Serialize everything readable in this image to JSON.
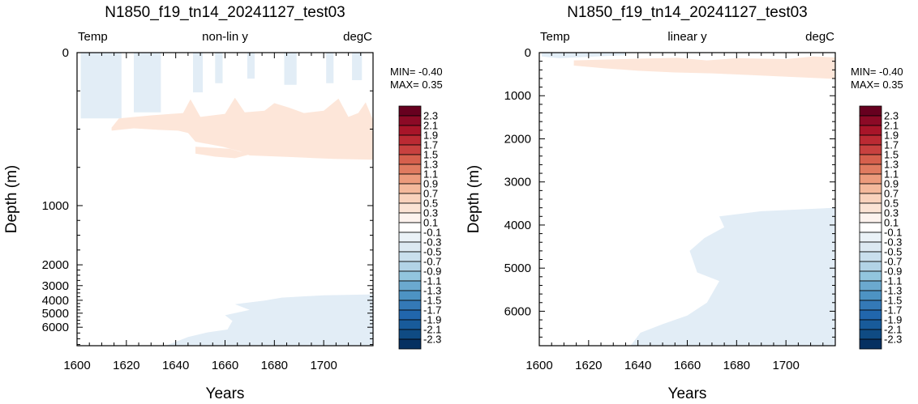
{
  "chart_data": [
    {
      "type": "heatmap",
      "title": "N1850_f19_tn14_20241127_test03",
      "left_label": "Temp",
      "center_label": "non-lin y",
      "right_label": "degC",
      "xlabel": "Years",
      "ylabel": "Depth (m)",
      "xlim": [
        1600,
        1720
      ],
      "ylim": [
        6800,
        0
      ],
      "y_scale": "nonlinear (upper 1000 m stretched)",
      "xticks": [
        "1600",
        "1620",
        "1640",
        "1660",
        "1680",
        "1700"
      ],
      "yticks": [
        "0",
        "1000",
        "2000",
        "3000",
        "4000",
        "5000",
        "6000"
      ],
      "min_text": "MIN= -0.40",
      "max_text": "MAX=  0.35",
      "regions": [
        {
          "sign": "negative",
          "level": -0.1,
          "depth_range": [
            0,
            430
          ],
          "years": [
            1600,
            1716
          ],
          "note": "near-surface cooling in vertical streaks"
        },
        {
          "sign": "positive",
          "level": 0.1,
          "depth_range": [
            430,
            700
          ],
          "years": [
            1613,
            1720
          ],
          "note": "warming band in upper ocean"
        },
        {
          "sign": "negative",
          "level": -0.1,
          "depth_range": [
            3600,
            6800
          ],
          "years": [
            1640,
            1720
          ],
          "note": "deep cooling"
        }
      ]
    },
    {
      "type": "heatmap",
      "title": "N1850_f19_tn14_20241127_test03",
      "left_label": "Temp",
      "center_label": "linear y",
      "right_label": "degC",
      "xlabel": "Years",
      "ylabel": "Depth (m)",
      "xlim": [
        1600,
        1720
      ],
      "ylim": [
        6800,
        0
      ],
      "y_scale": "linear",
      "xticks": [
        "1600",
        "1620",
        "1640",
        "1660",
        "1680",
        "1700"
      ],
      "yticks": [
        "0",
        "1000",
        "2000",
        "3000",
        "4000",
        "5000",
        "6000"
      ],
      "min_text": "MIN= -0.40",
      "max_text": "MAX=  0.35",
      "regions": [
        {
          "sign": "negative",
          "level": -0.1,
          "depth_range": [
            0,
            130
          ],
          "years": [
            1601,
            1635
          ],
          "note": "thin near-surface cooling"
        },
        {
          "sign": "positive",
          "level": 0.1,
          "depth_range": [
            0,
            600
          ],
          "years": [
            1613,
            1720
          ],
          "note": "upper-ocean warming"
        },
        {
          "sign": "negative",
          "level": -0.1,
          "depth_range": [
            3600,
            6800
          ],
          "years": [
            1637,
            1720
          ],
          "note": "deep cooling"
        }
      ]
    }
  ],
  "colorbar": {
    "labels": [
      "2.3",
      "2.1",
      "1.9",
      "1.7",
      "1.5",
      "1.3",
      "1.1",
      "0.9",
      "0.7",
      "0.5",
      "0.3",
      "0.1",
      "-0.1",
      "-0.3",
      "-0.5",
      "-0.7",
      "-0.9",
      "-1.1",
      "-1.3",
      "-1.5",
      "-1.7",
      "-1.9",
      "-2.1",
      "-2.3"
    ],
    "colors": [
      "#67001f",
      "#8c0a26",
      "#a81529",
      "#bb2a33",
      "#c8413f",
      "#d6604d",
      "#e07b60",
      "#ec9b7c",
      "#f4b99c",
      "#f9d2bc",
      "#fbe3d4",
      "#fdf3ee",
      "#ffffff",
      "#eaf2f7",
      "#dce9f2",
      "#c9dfed",
      "#b2d3e6",
      "#92c5de",
      "#6ba9cf",
      "#4d93c3",
      "#3479b6",
      "#2166ac",
      "#185b9a",
      "#0f4b83",
      "#053061"
    ]
  }
}
